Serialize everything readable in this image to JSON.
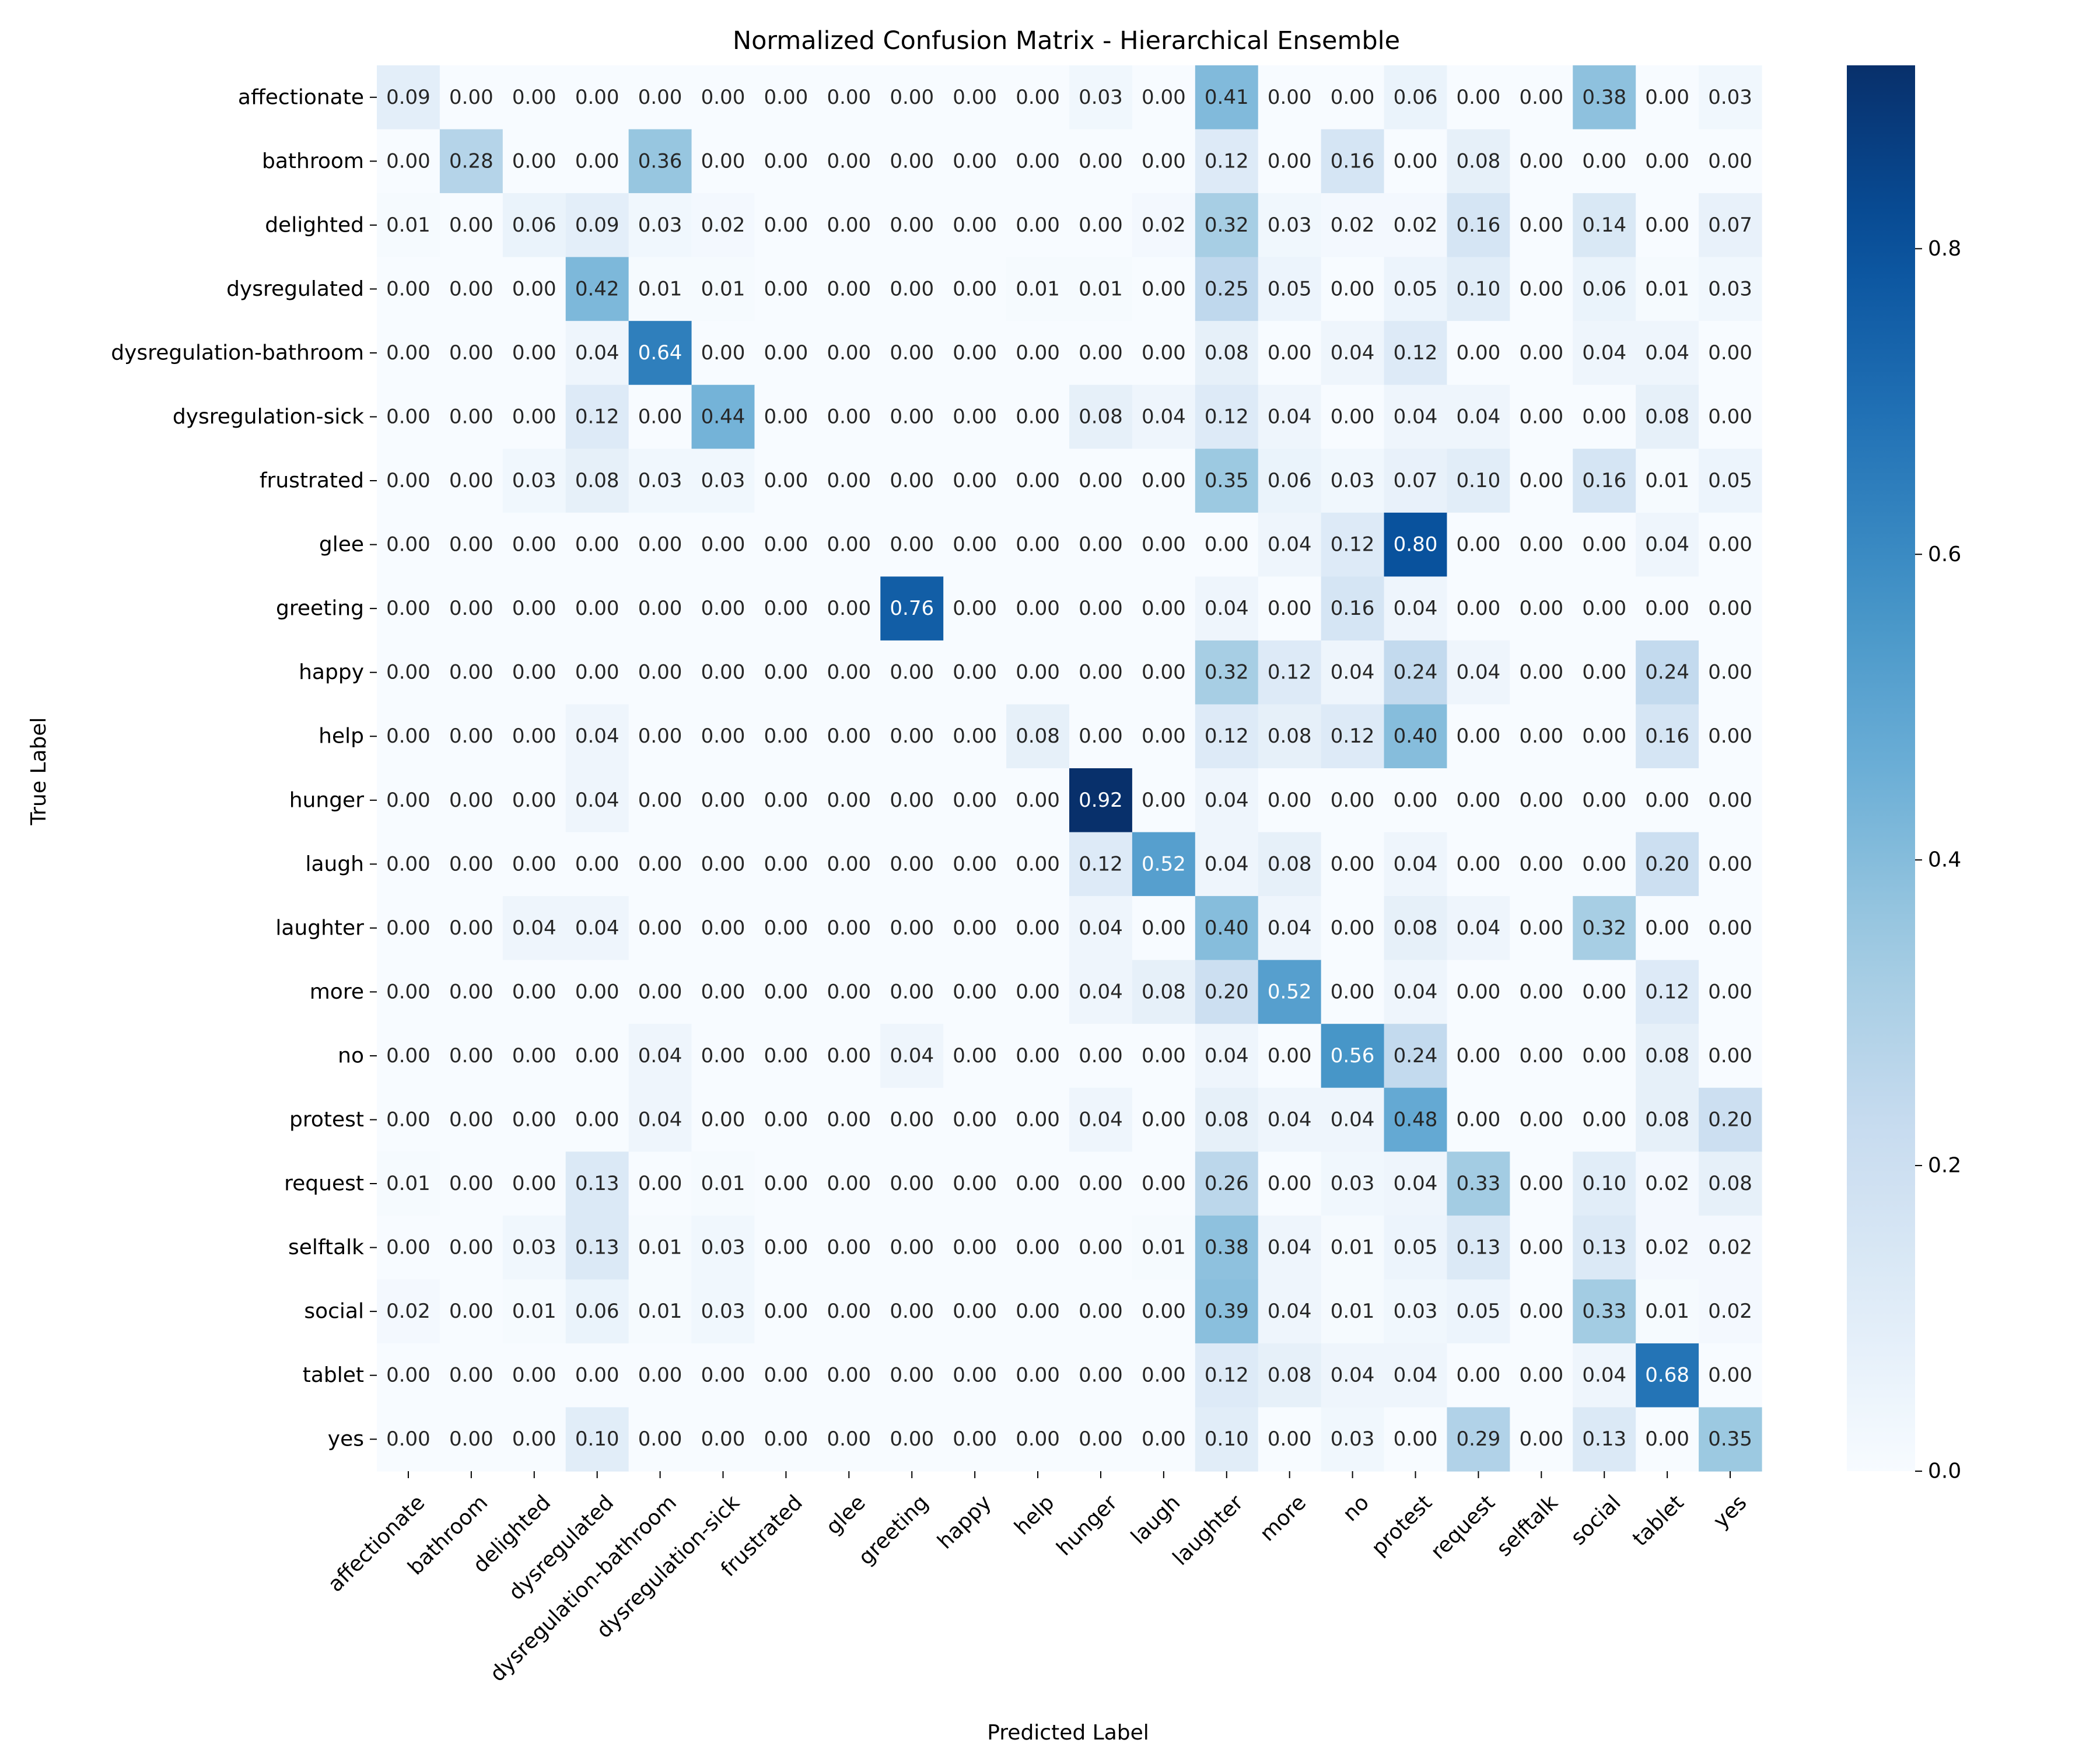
{
  "chart_data": {
    "type": "heatmap",
    "title": "Normalized Confusion Matrix - Hierarchical Ensemble",
    "xlabel": "Predicted Label",
    "ylabel": "True Label",
    "labels": [
      "affectionate",
      "bathroom",
      "delighted",
      "dysregulated",
      "dysregulation-bathroom",
      "dysregulation-sick",
      "frustrated",
      "glee",
      "greeting",
      "happy",
      "help",
      "hunger",
      "laugh",
      "laughter",
      "more",
      "no",
      "protest",
      "request",
      "selftalk",
      "social",
      "tablet",
      "yes"
    ],
    "matrix": [
      [
        0.09,
        0.0,
        0.0,
        0.0,
        0.0,
        0.0,
        0.0,
        0.0,
        0.0,
        0.0,
        0.0,
        0.03,
        0.0,
        0.41,
        0.0,
        0.0,
        0.06,
        0.0,
        0.0,
        0.38,
        0.0,
        0.03
      ],
      [
        0.0,
        0.28,
        0.0,
        0.0,
        0.36,
        0.0,
        0.0,
        0.0,
        0.0,
        0.0,
        0.0,
        0.0,
        0.0,
        0.12,
        0.0,
        0.16,
        0.0,
        0.08,
        0.0,
        0.0,
        0.0,
        0.0
      ],
      [
        0.01,
        0.0,
        0.06,
        0.09,
        0.03,
        0.02,
        0.0,
        0.0,
        0.0,
        0.0,
        0.0,
        0.0,
        0.02,
        0.32,
        0.03,
        0.02,
        0.02,
        0.16,
        0.0,
        0.14,
        0.0,
        0.07
      ],
      [
        0.0,
        0.0,
        0.0,
        0.42,
        0.01,
        0.01,
        0.0,
        0.0,
        0.0,
        0.0,
        0.01,
        0.01,
        0.0,
        0.25,
        0.05,
        0.0,
        0.05,
        0.1,
        0.0,
        0.06,
        0.01,
        0.03
      ],
      [
        0.0,
        0.0,
        0.0,
        0.04,
        0.64,
        0.0,
        0.0,
        0.0,
        0.0,
        0.0,
        0.0,
        0.0,
        0.0,
        0.08,
        0.0,
        0.04,
        0.12,
        0.0,
        0.0,
        0.04,
        0.04,
        0.0
      ],
      [
        0.0,
        0.0,
        0.0,
        0.12,
        0.0,
        0.44,
        0.0,
        0.0,
        0.0,
        0.0,
        0.0,
        0.08,
        0.04,
        0.12,
        0.04,
        0.0,
        0.04,
        0.04,
        0.0,
        0.0,
        0.08,
        0.0
      ],
      [
        0.0,
        0.0,
        0.03,
        0.08,
        0.03,
        0.03,
        0.0,
        0.0,
        0.0,
        0.0,
        0.0,
        0.0,
        0.0,
        0.35,
        0.06,
        0.03,
        0.07,
        0.1,
        0.0,
        0.16,
        0.01,
        0.05
      ],
      [
        0.0,
        0.0,
        0.0,
        0.0,
        0.0,
        0.0,
        0.0,
        0.0,
        0.0,
        0.0,
        0.0,
        0.0,
        0.0,
        0.0,
        0.04,
        0.12,
        0.8,
        0.0,
        0.0,
        0.0,
        0.04,
        0.0
      ],
      [
        0.0,
        0.0,
        0.0,
        0.0,
        0.0,
        0.0,
        0.0,
        0.0,
        0.76,
        0.0,
        0.0,
        0.0,
        0.0,
        0.04,
        0.0,
        0.16,
        0.04,
        0.0,
        0.0,
        0.0,
        0.0,
        0.0
      ],
      [
        0.0,
        0.0,
        0.0,
        0.0,
        0.0,
        0.0,
        0.0,
        0.0,
        0.0,
        0.0,
        0.0,
        0.0,
        0.0,
        0.32,
        0.12,
        0.04,
        0.24,
        0.04,
        0.0,
        0.0,
        0.24,
        0.0
      ],
      [
        0.0,
        0.0,
        0.0,
        0.04,
        0.0,
        0.0,
        0.0,
        0.0,
        0.0,
        0.0,
        0.08,
        0.0,
        0.0,
        0.12,
        0.08,
        0.12,
        0.4,
        0.0,
        0.0,
        0.0,
        0.16,
        0.0
      ],
      [
        0.0,
        0.0,
        0.0,
        0.04,
        0.0,
        0.0,
        0.0,
        0.0,
        0.0,
        0.0,
        0.0,
        0.92,
        0.0,
        0.04,
        0.0,
        0.0,
        0.0,
        0.0,
        0.0,
        0.0,
        0.0,
        0.0
      ],
      [
        0.0,
        0.0,
        0.0,
        0.0,
        0.0,
        0.0,
        0.0,
        0.0,
        0.0,
        0.0,
        0.0,
        0.12,
        0.52,
        0.04,
        0.08,
        0.0,
        0.04,
        0.0,
        0.0,
        0.0,
        0.2,
        0.0
      ],
      [
        0.0,
        0.0,
        0.04,
        0.04,
        0.0,
        0.0,
        0.0,
        0.0,
        0.0,
        0.0,
        0.0,
        0.04,
        0.0,
        0.4,
        0.04,
        0.0,
        0.08,
        0.04,
        0.0,
        0.32,
        0.0,
        0.0
      ],
      [
        0.0,
        0.0,
        0.0,
        0.0,
        0.0,
        0.0,
        0.0,
        0.0,
        0.0,
        0.0,
        0.0,
        0.04,
        0.08,
        0.2,
        0.52,
        0.0,
        0.04,
        0.0,
        0.0,
        0.0,
        0.12,
        0.0
      ],
      [
        0.0,
        0.0,
        0.0,
        0.0,
        0.04,
        0.0,
        0.0,
        0.0,
        0.04,
        0.0,
        0.0,
        0.0,
        0.0,
        0.04,
        0.0,
        0.56,
        0.24,
        0.0,
        0.0,
        0.0,
        0.08,
        0.0
      ],
      [
        0.0,
        0.0,
        0.0,
        0.0,
        0.04,
        0.0,
        0.0,
        0.0,
        0.0,
        0.0,
        0.0,
        0.04,
        0.0,
        0.08,
        0.04,
        0.04,
        0.48,
        0.0,
        0.0,
        0.0,
        0.08,
        0.2
      ],
      [
        0.01,
        0.0,
        0.0,
        0.13,
        0.0,
        0.01,
        0.0,
        0.0,
        0.0,
        0.0,
        0.0,
        0.0,
        0.0,
        0.26,
        0.0,
        0.03,
        0.04,
        0.33,
        0.0,
        0.1,
        0.02,
        0.08
      ],
      [
        0.0,
        0.0,
        0.03,
        0.13,
        0.01,
        0.03,
        0.0,
        0.0,
        0.0,
        0.0,
        0.0,
        0.0,
        0.01,
        0.38,
        0.04,
        0.01,
        0.05,
        0.13,
        0.0,
        0.13,
        0.02,
        0.02
      ],
      [
        0.02,
        0.0,
        0.01,
        0.06,
        0.01,
        0.03,
        0.0,
        0.0,
        0.0,
        0.0,
        0.0,
        0.0,
        0.0,
        0.39,
        0.04,
        0.01,
        0.03,
        0.05,
        0.0,
        0.33,
        0.01,
        0.02
      ],
      [
        0.0,
        0.0,
        0.0,
        0.0,
        0.0,
        0.0,
        0.0,
        0.0,
        0.0,
        0.0,
        0.0,
        0.0,
        0.0,
        0.12,
        0.08,
        0.04,
        0.04,
        0.0,
        0.0,
        0.04,
        0.68,
        0.0
      ],
      [
        0.0,
        0.0,
        0.0,
        0.1,
        0.0,
        0.0,
        0.0,
        0.0,
        0.0,
        0.0,
        0.0,
        0.0,
        0.0,
        0.1,
        0.0,
        0.03,
        0.0,
        0.29,
        0.0,
        0.13,
        0.0,
        0.35
      ]
    ],
    "colormap": "Blues",
    "colorbar": {
      "min": 0.0,
      "max": 0.92,
      "ticks": [
        "0.0",
        "0.2",
        "0.4",
        "0.6",
        "0.8"
      ]
    }
  }
}
